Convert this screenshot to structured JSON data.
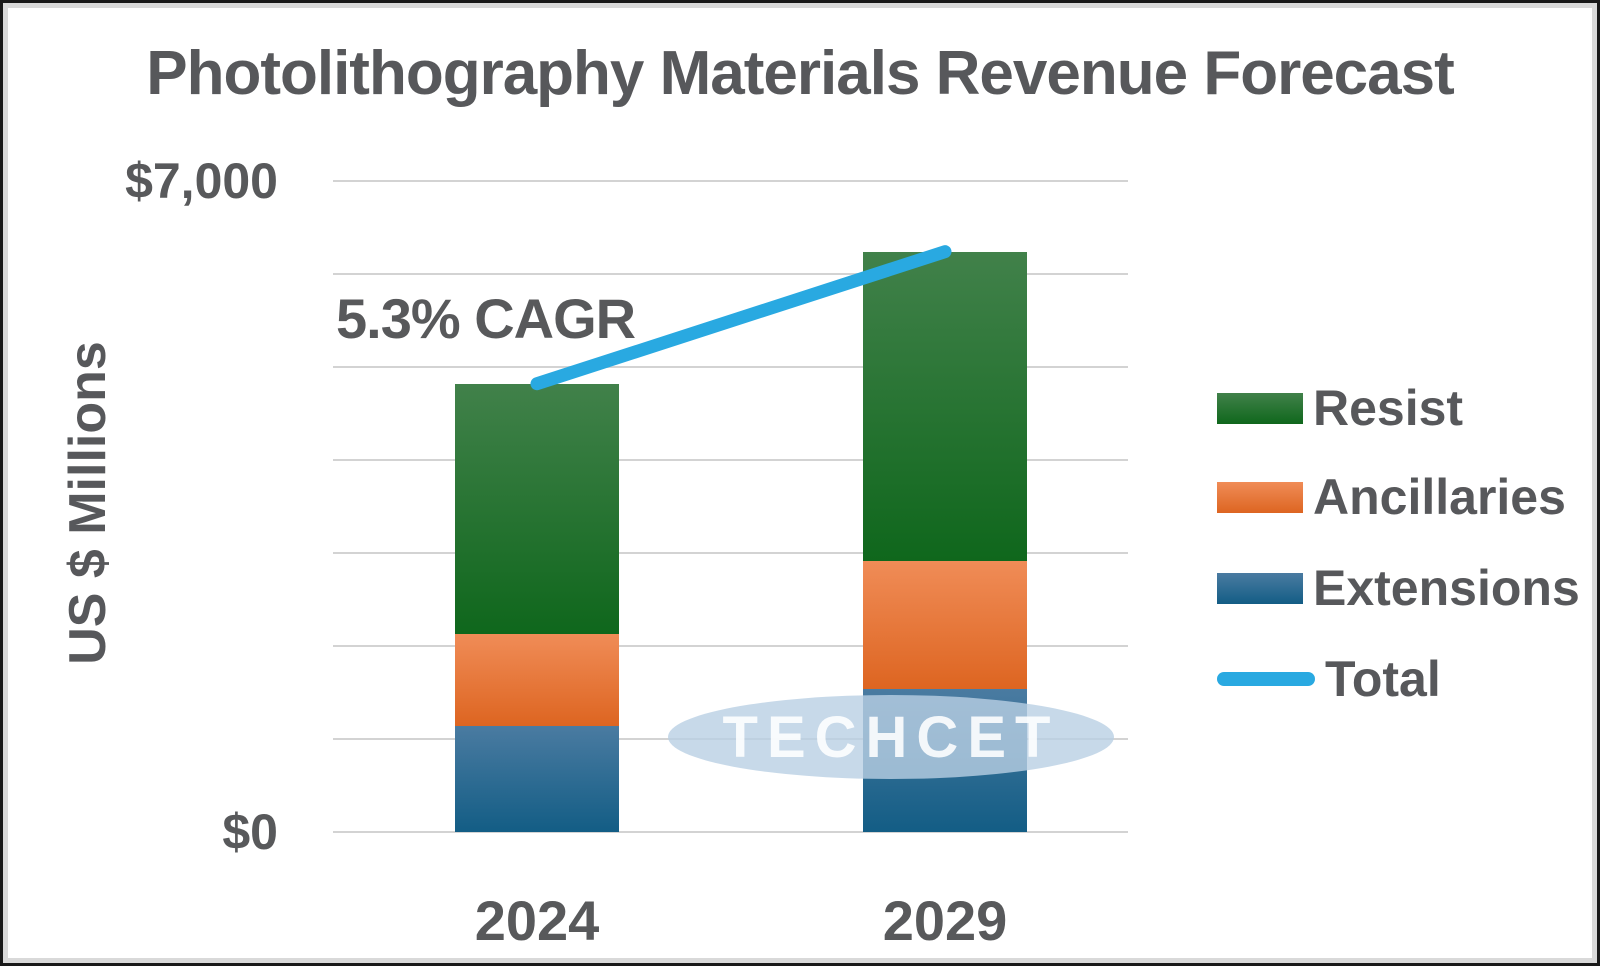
{
  "chart_data": {
    "type": "bar",
    "subtype": "stacked-column-with-total-line",
    "title": "Photolithography Materials Revenue Forecast",
    "xlabel": "",
    "ylabel": "US $ Millions",
    "categories": [
      "2024",
      "2029"
    ],
    "series": [
      {
        "name": "Extensions",
        "values": [
          1140,
          1540
        ],
        "color_top": "#4a7ba1",
        "color_bottom": "#135d85"
      },
      {
        "name": "Ancillaries",
        "values": [
          990,
          1370
        ],
        "color_top": "#f08c57",
        "color_bottom": "#dd6521"
      },
      {
        "name": "Resist",
        "values": [
          2690,
          3330
        ],
        "color_top": "#41814a",
        "color_bottom": "#0f671c"
      }
    ],
    "total_line": {
      "name": "Total",
      "values": [
        4820,
        6240
      ],
      "color": "#29a9e1"
    },
    "annotation": "5.3% CAGR",
    "ylim": [
      0,
      7000
    ],
    "gridline_step": 1000,
    "grid": true,
    "yticks": [
      {
        "value": 7000,
        "label": "$7,000"
      },
      {
        "value": 0,
        "label": "$0"
      }
    ],
    "legend_position": "right",
    "legend_order": [
      "Resist",
      "Ancillaries",
      "Extensions",
      "Total"
    ]
  },
  "watermark": {
    "text": "TECHCET",
    "fill": "#b9cfe4"
  },
  "style": {
    "text_color": "#57585b",
    "gridline_color": "#d3d3d3",
    "background": "#ffffff"
  }
}
